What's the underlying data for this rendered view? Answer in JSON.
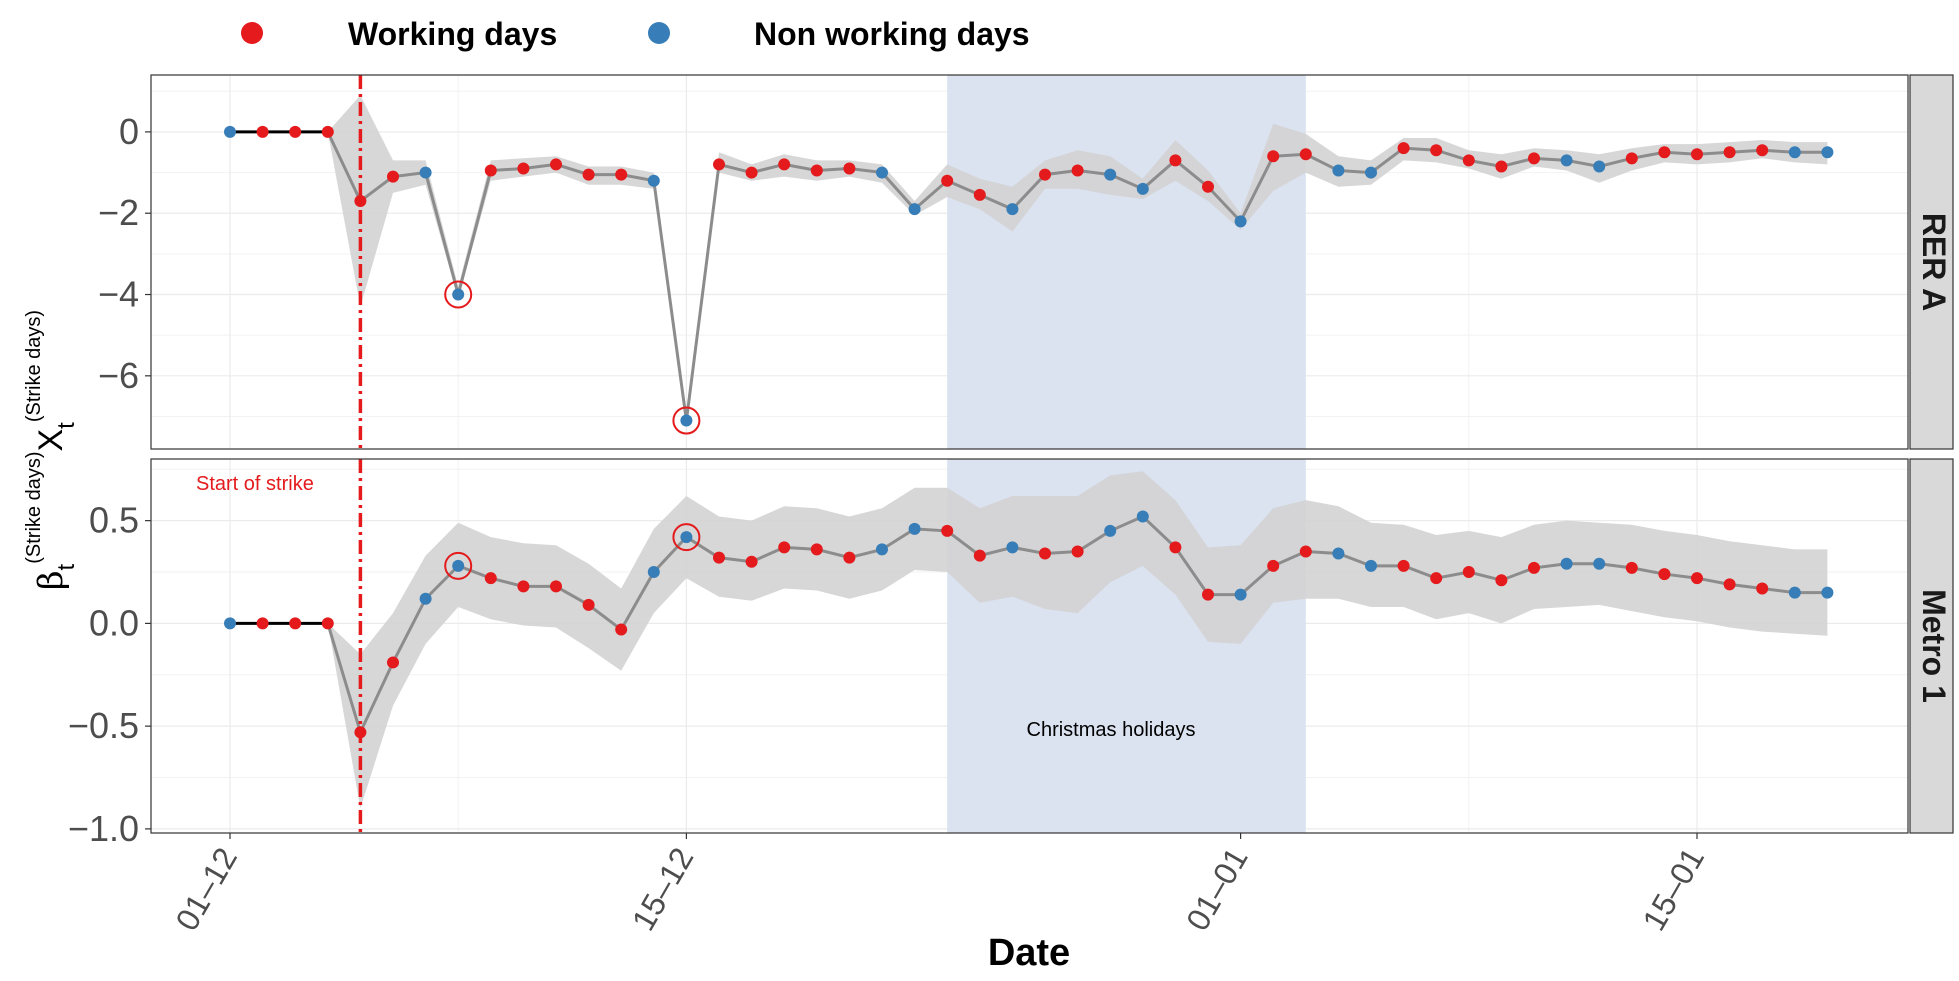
{
  "chart_data": {
    "type": "line",
    "xlabel": "Date",
    "ylabel_main": "β",
    "ylabel_sub": "t",
    "ylabel_sup": "(Strike days)",
    "ylabel_main2": "X",
    "ylabel_sub2": "t",
    "ylabel_sup2": "(Strike days)",
    "x_ticks": [
      {
        "day": 0,
        "label": "01–12"
      },
      {
        "day": 14,
        "label": "15–12"
      },
      {
        "day": 31,
        "label": "01–01"
      },
      {
        "day": 45,
        "label": "15–01"
      }
    ],
    "legend": [
      {
        "label": "Working days",
        "color": "#e41a1c"
      },
      {
        "label": "Non working days",
        "color": "#377eb8"
      }
    ],
    "colors": {
      "working": "#e41a1c",
      "non_working": "#377eb8",
      "line": "#8c8c8c",
      "ribbon": "#d3d3d3",
      "holiday": "#dbe2f0",
      "strike": "#e41a1c"
    },
    "strike_day": 4,
    "strike_label": "Start of strike",
    "holiday_range": [
      22,
      33
    ],
    "holiday_label": "Christmas holidays",
    "days_labels": [
      "01-12",
      "02-12",
      "03-12",
      "04-12",
      "05-12",
      "06-12",
      "07-12",
      "08-12",
      "09-12",
      "10-12",
      "11-12",
      "12-12",
      "13-12",
      "14-12",
      "15-12",
      "16-12",
      "17-12",
      "18-12",
      "19-12",
      "20-12",
      "21-12",
      "22-12",
      "23-12",
      "24-12",
      "25-12",
      "26-12",
      "27-12",
      "28-12",
      "29-12",
      "30-12",
      "31-12",
      "01-01",
      "02-01",
      "03-01",
      "04-01",
      "05-01",
      "06-01",
      "07-01",
      "08-01",
      "09-01",
      "10-01",
      "11-01",
      "12-01",
      "13-01",
      "14-01",
      "15-01",
      "16-01",
      "17-01",
      "18-01",
      "19-01"
    ],
    "day_type": [
      "N",
      "W",
      "W",
      "W",
      "W",
      "W",
      "N",
      "N",
      "W",
      "W",
      "W",
      "W",
      "W",
      "N",
      "N",
      "W",
      "W",
      "W",
      "W",
      "W",
      "N",
      "N",
      "W",
      "W",
      "N",
      "W",
      "W",
      "N",
      "N",
      "W",
      "W",
      "N",
      "W",
      "W",
      "N",
      "N",
      "W",
      "W",
      "W",
      "W",
      "W",
      "N",
      "N",
      "W",
      "W",
      "W",
      "W",
      "W",
      "N",
      "N"
    ],
    "panels": [
      {
        "title": "RER A",
        "ylim": [
          -7.8,
          1.4
        ],
        "y_ticks": [
          0,
          -2,
          -4,
          -6
        ],
        "y_tick_labels": [
          "0",
          "−2",
          "−4",
          "−6"
        ],
        "circled_days": [
          7,
          14
        ],
        "values": [
          0,
          0,
          0,
          0,
          -1.7,
          -1.1,
          -1.0,
          -4.0,
          -0.95,
          -0.9,
          -0.8,
          -1.05,
          -1.05,
          -1.2,
          -7.1,
          -0.8,
          -1.0,
          -0.8,
          -0.95,
          -0.9,
          -1.0,
          -1.9,
          -1.2,
          -1.55,
          -1.9,
          -1.05,
          -0.95,
          -1.05,
          -1.4,
          -0.7,
          -1.35,
          -2.2,
          -0.6,
          -0.55,
          -0.95,
          -1.0,
          -0.4,
          -0.45,
          -0.7,
          -0.85,
          -0.65,
          -0.7,
          -0.85,
          -0.65,
          -0.5,
          -0.55,
          -0.5,
          -0.45,
          -0.5,
          -0.5
        ],
        "lower": [
          0,
          0,
          0,
          0,
          -4.3,
          -1.5,
          -1.3,
          -4.1,
          -1.2,
          -1.1,
          -1.0,
          -1.3,
          -1.3,
          -1.4,
          -7.25,
          -1.0,
          -1.2,
          -1.1,
          -1.2,
          -1.1,
          -1.25,
          -2.05,
          -1.6,
          -1.9,
          -2.45,
          -1.4,
          -1.4,
          -1.55,
          -1.65,
          -1.2,
          -1.7,
          -2.4,
          -1.45,
          -1.0,
          -1.35,
          -1.3,
          -0.7,
          -0.75,
          -0.9,
          -1.15,
          -0.85,
          -0.95,
          -1.25,
          -0.95,
          -0.75,
          -0.8,
          -0.75,
          -0.65,
          -0.75,
          -0.8
        ],
        "upper": [
          0,
          0,
          0,
          0,
          0.9,
          -0.7,
          -0.7,
          -3.8,
          -0.7,
          -0.65,
          -0.6,
          -0.85,
          -0.85,
          -1.0,
          -6.9,
          -0.5,
          -0.8,
          -0.55,
          -0.7,
          -0.7,
          -0.8,
          -1.7,
          -0.8,
          -1.15,
          -1.35,
          -0.7,
          -0.45,
          -0.6,
          -1.15,
          -0.2,
          -0.95,
          -2.0,
          0.2,
          -0.05,
          -0.6,
          -0.7,
          -0.15,
          -0.15,
          -0.45,
          -0.55,
          -0.4,
          -0.45,
          -0.55,
          -0.4,
          -0.3,
          -0.3,
          -0.25,
          -0.2,
          -0.25,
          -0.25
        ]
      },
      {
        "title": "Metro 1",
        "ylim": [
          -1.02,
          0.8
        ],
        "y_ticks": [
          0.5,
          0.0,
          -0.5,
          -1.0
        ],
        "y_tick_labels": [
          "0.5",
          "0.0",
          "−0.5",
          "−1.0"
        ],
        "circled_days": [
          7,
          14
        ],
        "values": [
          0,
          0,
          0,
          0,
          -0.53,
          -0.19,
          0.12,
          0.28,
          0.22,
          0.18,
          0.18,
          0.09,
          -0.03,
          0.25,
          0.42,
          0.32,
          0.3,
          0.37,
          0.36,
          0.32,
          0.36,
          0.46,
          0.45,
          0.33,
          0.37,
          0.34,
          0.35,
          0.45,
          0.52,
          0.37,
          0.14,
          0.14,
          0.28,
          0.35,
          0.34,
          0.28,
          0.28,
          0.22,
          0.25,
          0.21,
          0.27,
          0.29,
          0.29,
          0.27,
          0.24,
          0.22,
          0.19,
          0.17,
          0.15,
          0.15
        ],
        "lower": [
          0,
          0,
          0,
          0,
          -0.9,
          -0.4,
          -0.1,
          0.08,
          0.02,
          -0.01,
          -0.02,
          -0.12,
          -0.23,
          0.05,
          0.22,
          0.13,
          0.11,
          0.17,
          0.16,
          0.12,
          0.16,
          0.26,
          0.25,
          0.1,
          0.13,
          0.07,
          0.05,
          0.2,
          0.28,
          0.14,
          -0.09,
          -0.1,
          0.1,
          0.12,
          0.12,
          0.08,
          0.08,
          0.02,
          0.05,
          0.0,
          0.07,
          0.08,
          0.09,
          0.06,
          0.03,
          0.01,
          -0.02,
          -0.04,
          -0.05,
          -0.06
        ],
        "upper": [
          0,
          0,
          0,
          0,
          -0.15,
          0.05,
          0.33,
          0.49,
          0.42,
          0.39,
          0.38,
          0.29,
          0.17,
          0.46,
          0.62,
          0.52,
          0.5,
          0.57,
          0.56,
          0.52,
          0.56,
          0.66,
          0.66,
          0.56,
          0.62,
          0.62,
          0.62,
          0.72,
          0.74,
          0.6,
          0.37,
          0.38,
          0.56,
          0.6,
          0.57,
          0.49,
          0.48,
          0.43,
          0.45,
          0.42,
          0.48,
          0.5,
          0.49,
          0.48,
          0.45,
          0.43,
          0.4,
          0.38,
          0.36,
          0.36
        ]
      }
    ]
  }
}
